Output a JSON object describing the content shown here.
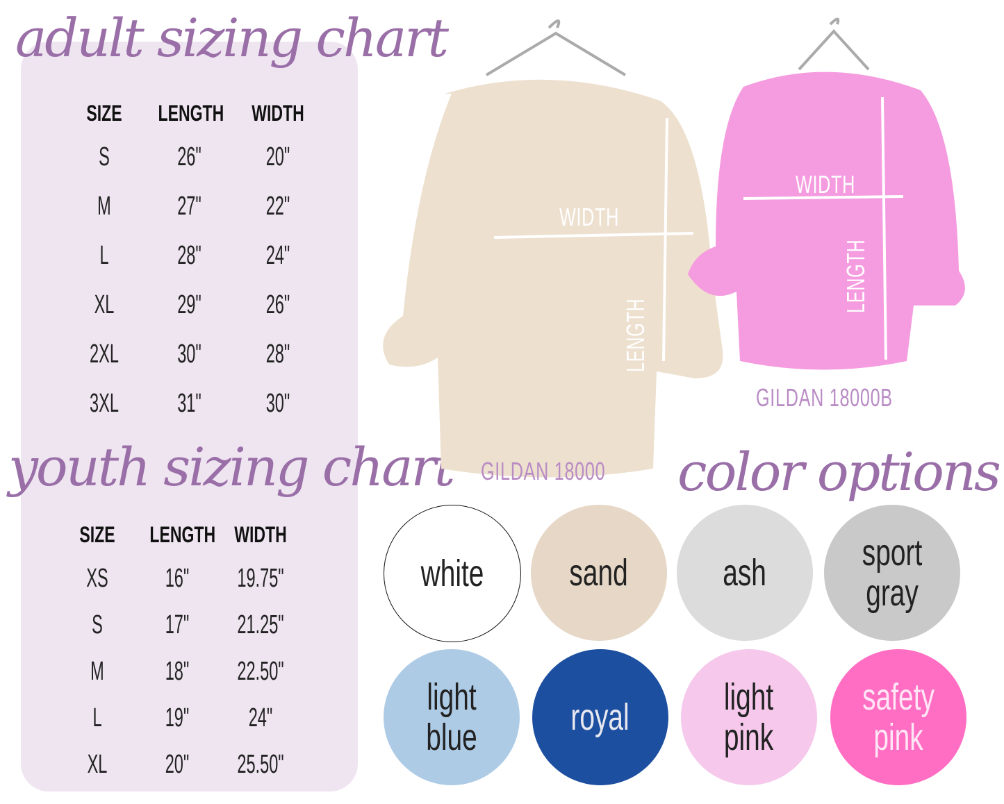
{
  "adult": {
    "title": "adult sizing chart",
    "headers": [
      "SIZE",
      "LENGTH",
      "WIDTH"
    ],
    "rows": [
      [
        "S",
        "26\"",
        "20\""
      ],
      [
        "M",
        "27\"",
        "22\""
      ],
      [
        "L",
        "28\"",
        "24\""
      ],
      [
        "XL",
        "29\"",
        "26\""
      ],
      [
        "2XL",
        "30\"",
        "28\""
      ],
      [
        "3XL",
        "31\"",
        "30\""
      ]
    ]
  },
  "youth": {
    "title": "youth sizing chart",
    "headers": [
      "SIZE",
      "LENGTH",
      "WIDTH"
    ],
    "rows": [
      [
        "XS",
        "16\"",
        "19.75\""
      ],
      [
        "S",
        "17\"",
        "21.25\""
      ],
      [
        "M",
        "18\"",
        "22.50\""
      ],
      [
        "L",
        "19\"",
        "24\""
      ],
      [
        "XL",
        "20\"",
        "25.50\""
      ]
    ]
  },
  "products": [
    {
      "label": "GILDAN 18000",
      "color": "#ede0cf",
      "width_label": "WIDTH",
      "length_label": "LENGTH"
    },
    {
      "label": "GILDAN 18000B",
      "color": "#f59bdf",
      "width_label": "WIDTH",
      "length_label": "LENGTH"
    }
  ],
  "colors": {
    "title": "color options",
    "swatches": [
      {
        "name": "white",
        "fill": "#ffffff",
        "text": "#222222"
      },
      {
        "name": "sand",
        "fill": "#e6d7c6",
        "text": "#222222"
      },
      {
        "name": "ash",
        "fill": "#dcdcdc",
        "text": "#222222"
      },
      {
        "name": "sport\ngray",
        "fill": "#c9c9c9",
        "text": "#222222"
      },
      {
        "name": "light\nblue",
        "fill": "#aecbe6",
        "text": "#222222"
      },
      {
        "name": "royal",
        "fill": "#1d4fa0",
        "text": "#e8e8f0"
      },
      {
        "name": "light\npink",
        "fill": "#f6c9ec",
        "text": "#222222"
      },
      {
        "name": "safety\npink",
        "fill": "#ff6ec3",
        "text": "#ffe5f5"
      }
    ]
  }
}
